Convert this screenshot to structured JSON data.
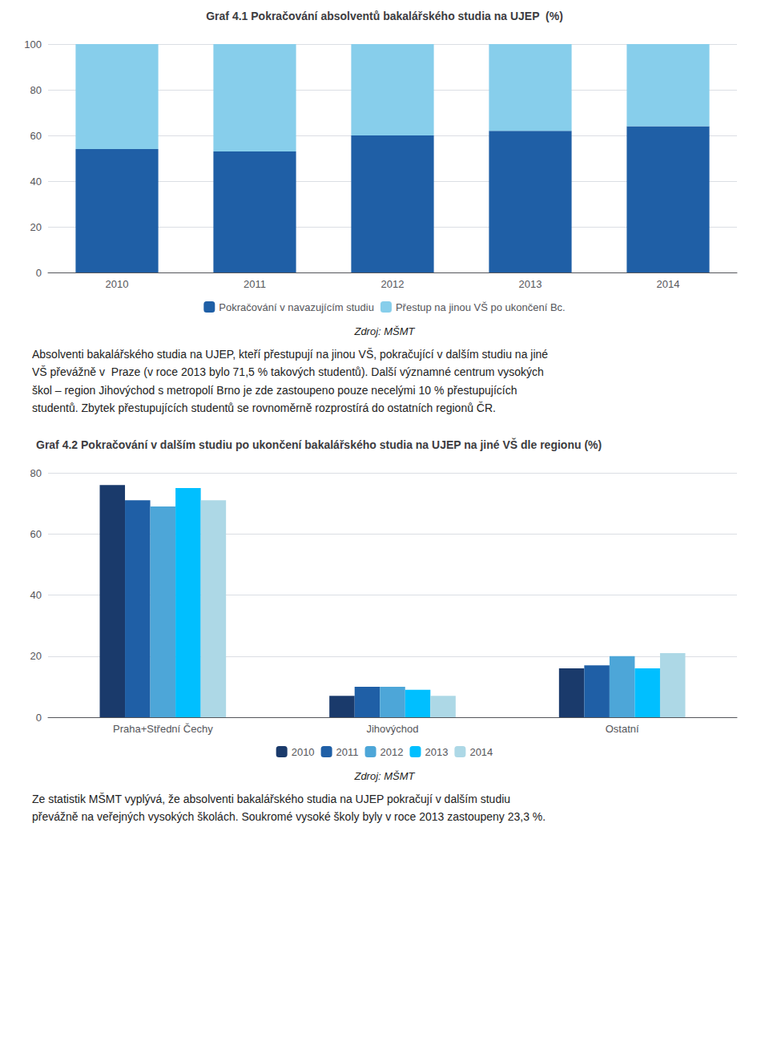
{
  "chart_data": [
    {
      "type": "bar",
      "title": "Graf 4.1 Pokračování absolventů bakalářského studia na UJEP  (%)",
      "categories": [
        "2010",
        "2011",
        "2012",
        "2013",
        "2014"
      ],
      "series": [
        {
          "name": "Pokračování v navazujícím studiu",
          "color": "#1F5FA6",
          "values": [
            54,
            53,
            60,
            62,
            64
          ]
        },
        {
          "name": "Přestup na jinou VŠ po ukončení Bc.",
          "color": "#87CEEB",
          "values": [
            46,
            47,
            40,
            38,
            36
          ]
        }
      ],
      "stacked": true,
      "ylim": [
        0,
        100
      ],
      "yticks": [
        0,
        20,
        40,
        60,
        80,
        100
      ],
      "grid": true,
      "legend": "bottom",
      "annotations": [
        "Zdroj: MŠMT",
        "Absolventi bakalářského studia na UJEP, kteří přestupují na jinou VŠ, pokračující v dalším studiu na jiné\nVŠ převážně v  Praze (v roce 2013 bylo 71,5 % takových studentů). Další významné centrum vysokých\nškol – region Jihovýchod s metropolí Brno je zde zastoupeno pouze necelými 10 % přestupujících\nstudentů. Zbytek přestupujících studentů se rovnoměrně rozprostírá do ostatních regionů ČR."
      ]
    },
    {
      "type": "bar",
      "title": "Graf 4.2 Pokračování v dalším studiu po ukončení bakalářského studia na UJEP na jiné VŠ dle regionu (%)",
      "categories": [
        "Praha+Střední Čechy",
        "Jihovýchod",
        "Ostatní"
      ],
      "series": [
        {
          "name": "2010",
          "color": "#1A3A6B",
          "values": [
            76,
            7,
            16
          ]
        },
        {
          "name": "2011",
          "color": "#1F5FA6",
          "values": [
            71,
            10,
            17
          ]
        },
        {
          "name": "2012",
          "color": "#4DA6D8",
          "values": [
            69,
            10,
            20
          ]
        },
        {
          "name": "2013",
          "color": "#00BFFF",
          "values": [
            75,
            9,
            16
          ]
        },
        {
          "name": "2014",
          "color": "#ADD8E6",
          "values": [
            71,
            7,
            21
          ]
        }
      ],
      "ylim": [
        0,
        80
      ],
      "yticks": [
        0,
        20,
        40,
        60,
        80
      ],
      "grid": true,
      "legend": "bottom",
      "annotations": [
        "Zdroj: MŠMT",
        "Ze statistik MŠMT vyplývá, že absolventi bakalářského studia na UJEP pokračují v dalším studiu\npřevážně na veřejných vysokých školách. Soukromé vysoké školy byly v roce 2013 zastoupeny 23,3 %."
      ]
    }
  ]
}
